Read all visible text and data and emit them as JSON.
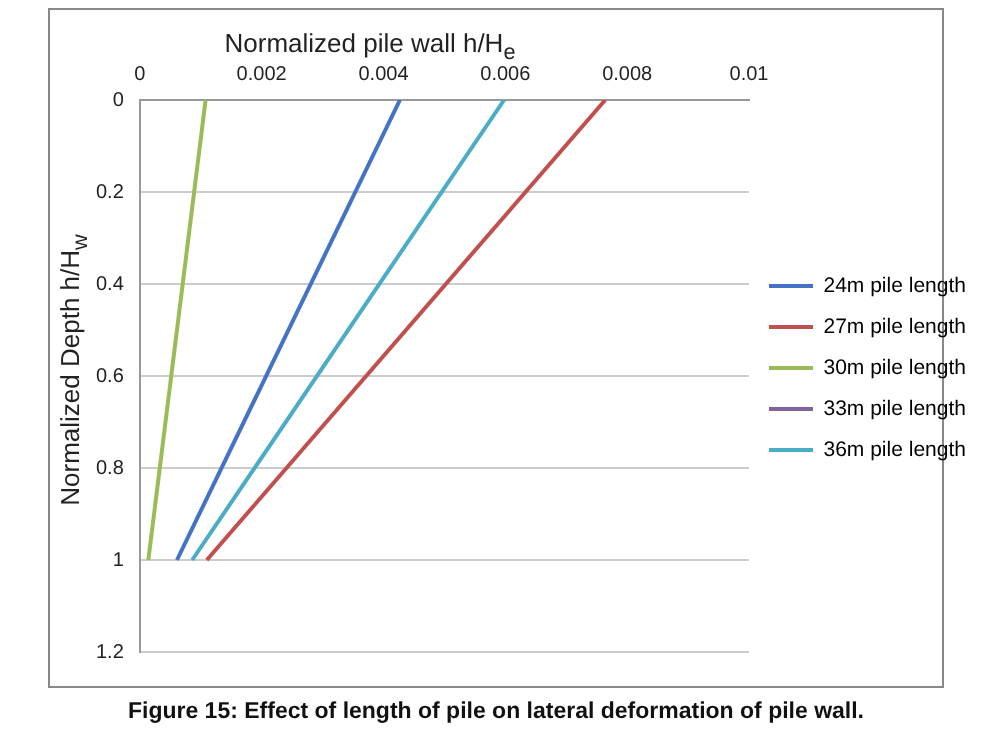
{
  "chart_data": {
    "type": "line",
    "xlabel": "Normalized pile wall h/H$_{e}$",
    "ylabel": "Normalized Depth h/H$_{w}$",
    "xlim": [
      0,
      0.01
    ],
    "xticks": [
      0,
      0.002,
      0.004,
      0.006,
      0.008,
      0.01
    ],
    "ylim": [
      1.2,
      0
    ],
    "yticks": [
      0,
      0.2,
      0.4,
      0.6,
      0.8,
      1,
      1.2
    ],
    "grid": "y",
    "legend": "right",
    "marker": "none",
    "line_style": "solid",
    "series": [
      {
        "name": "24m pile length",
        "color": "#4472c4",
        "x": [
          0.00427,
          0.00061
        ],
        "values": [
          0,
          1
        ]
      },
      {
        "name": "27m pile length",
        "color": "#c0504d",
        "x": [
          0.00764,
          0.0011
        ],
        "values": [
          0,
          1
        ]
      },
      {
        "name": "30m pile length",
        "color": "#9bbb59",
        "x": [
          0.00108,
          0.00014
        ],
        "values": [
          0,
          1
        ]
      },
      {
        "name": "33m pile length",
        "color": "#8064a2",
        "x": [
          null,
          null
        ],
        "values": [
          null,
          null
        ]
      },
      {
        "name": "36m pile length",
        "color": "#4bacc6",
        "x": [
          0.00598,
          0.00086
        ],
        "values": [
          0,
          1
        ]
      }
    ],
    "annotations": [
      "Figure 15: Effect of length of pile on lateral deformation of pile wall."
    ]
  }
}
